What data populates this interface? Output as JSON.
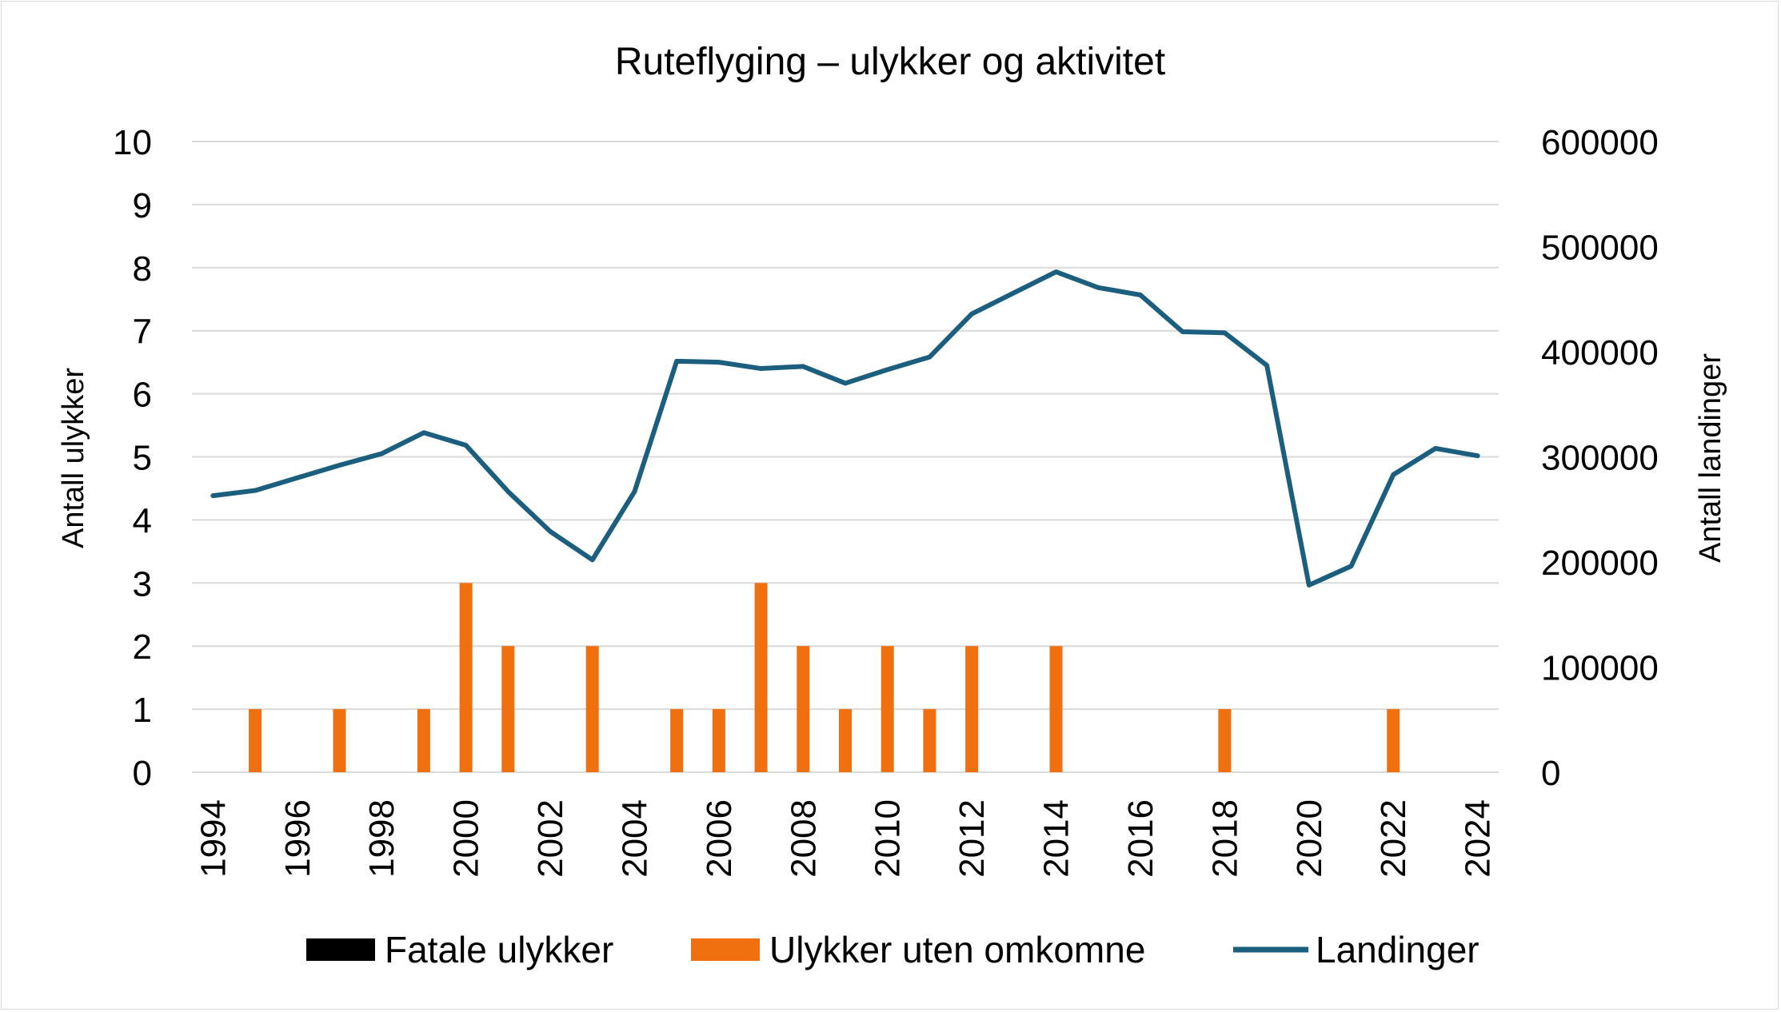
{
  "chart_data": {
    "type": "bar",
    "title": "Ruteflyging – ulykker og aktivitet",
    "ylabel": "Antall ulykker",
    "y2label": "Antall landinger",
    "ylim": [
      0,
      10
    ],
    "y2lim": [
      0,
      600000
    ],
    "yticks": [
      "0",
      "1",
      "2",
      "3",
      "4",
      "5",
      "6",
      "7",
      "8",
      "9",
      "10"
    ],
    "y2ticks": [
      "0",
      "100000",
      "200000",
      "300000",
      "400000",
      "500000",
      "600000"
    ],
    "x": [
      1994,
      1995,
      1996,
      1997,
      1998,
      1999,
      2000,
      2001,
      2002,
      2003,
      2004,
      2005,
      2006,
      2007,
      2008,
      2009,
      2010,
      2011,
      2012,
      2013,
      2014,
      2015,
      2016,
      2017,
      2018,
      2019,
      2020,
      2021,
      2022,
      2023,
      2024
    ],
    "xticks": [
      "1994",
      "1996",
      "1998",
      "2000",
      "2002",
      "2004",
      "2006",
      "2008",
      "2010",
      "2012",
      "2014",
      "2016",
      "2018",
      "2020",
      "2022",
      "2024"
    ],
    "series": [
      {
        "name": "Fatale ulykker",
        "type": "bar",
        "axis": "left",
        "color": "#000000",
        "values": [
          0,
          0,
          0,
          0,
          0,
          0,
          0,
          0,
          0,
          0,
          0,
          0,
          0,
          0,
          0,
          0,
          0,
          0,
          0,
          0,
          0,
          0,
          0,
          0,
          0,
          0,
          0,
          0,
          0,
          0,
          0
        ]
      },
      {
        "name": "Ulykker uten omkomne",
        "type": "bar",
        "axis": "left",
        "color": "#f07010",
        "values": [
          0,
          1,
          0,
          1,
          0,
          1,
          3,
          2,
          0,
          2,
          0,
          1,
          1,
          3,
          2,
          1,
          2,
          1,
          2,
          0,
          2,
          0,
          0,
          0,
          1,
          0,
          0,
          0,
          1,
          0,
          0
        ]
      },
      {
        "name": "Landinger",
        "type": "line",
        "axis": "right",
        "color": "#1b5e7e",
        "values": [
          263000,
          268000,
          280000,
          292000,
          303000,
          323000,
          311000,
          267000,
          229000,
          202000,
          267000,
          391000,
          390000,
          384000,
          386000,
          370000,
          383000,
          395000,
          436000,
          456000,
          476000,
          461000,
          454000,
          419000,
          418000,
          387000,
          178000,
          196000,
          283000,
          308000,
          301000
        ]
      }
    ],
    "grid": true,
    "legend_position": "bottom"
  }
}
